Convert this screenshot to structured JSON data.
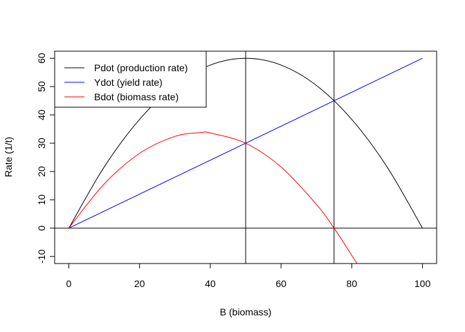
{
  "chart_data": {
    "type": "line",
    "xlabel": "B (biomass)",
    "ylabel": "Rate (1/t)",
    "xlim": [
      -4,
      104
    ],
    "ylim": [
      -12.5,
      62.5
    ],
    "x_ticks": [
      0,
      20,
      40,
      60,
      80,
      100
    ],
    "y_ticks": [
      -10,
      0,
      10,
      20,
      30,
      40,
      50,
      60
    ],
    "grid": false,
    "legend_position": "top-left",
    "series": [
      {
        "name": "Pdot (production rate)",
        "color": "#000000",
        "x": [
          0,
          10,
          20,
          30,
          40,
          50,
          60,
          70,
          80,
          90,
          100
        ],
        "y": [
          0,
          21.6,
          38.4,
          50.4,
          57.6,
          60,
          57.6,
          50.4,
          38.4,
          21.6,
          0
        ]
      },
      {
        "name": "Ydot (yield rate)",
        "color": "#0000ff",
        "x": [
          0,
          100
        ],
        "y": [
          0,
          60
        ]
      },
      {
        "name": "Bdot (biomass rate)",
        "color": "#ff0000",
        "x": [
          0,
          10,
          20,
          30,
          37.5,
          40,
          50,
          60,
          70,
          75,
          80,
          81.5
        ],
        "y": [
          0,
          15.6,
          26.4,
          32.4,
          33.75,
          33.6,
          30,
          21.6,
          8.4,
          0,
          -9.6,
          -12.5
        ]
      }
    ],
    "reference_lines": {
      "horizontal": [
        0
      ],
      "vertical": [
        50,
        75
      ]
    }
  }
}
